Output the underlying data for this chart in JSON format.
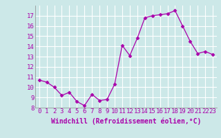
{
  "x": [
    0,
    1,
    2,
    3,
    4,
    5,
    6,
    7,
    8,
    9,
    10,
    11,
    12,
    13,
    14,
    15,
    16,
    17,
    18,
    19,
    20,
    21,
    22,
    23
  ],
  "y": [
    10.7,
    10.5,
    10.0,
    9.2,
    9.5,
    8.6,
    8.2,
    9.3,
    8.7,
    8.8,
    10.3,
    14.1,
    13.1,
    14.8,
    16.8,
    17.0,
    17.1,
    17.2,
    17.5,
    16.0,
    14.5,
    13.3,
    13.5,
    13.2
  ],
  "line_color": "#aa00aa",
  "marker": "D",
  "marker_size": 2.5,
  "background_color": "#cce8e8",
  "grid_color": "#ffffff",
  "xlabel": "Windchill (Refroidissement éolien,°C)",
  "xlabel_color": "#aa00aa",
  "xlabel_fontsize": 7,
  "tick_color": "#aa00aa",
  "tick_fontsize": 6.5,
  "ylim": [
    8,
    18
  ],
  "xlim": [
    -0.5,
    23.5
  ],
  "yticks": [
    8,
    9,
    10,
    11,
    12,
    13,
    14,
    15,
    16,
    17
  ],
  "xticks": [
    0,
    1,
    2,
    3,
    4,
    5,
    6,
    7,
    8,
    9,
    10,
    11,
    12,
    13,
    14,
    15,
    16,
    17,
    18,
    19,
    20,
    21,
    22,
    23
  ]
}
